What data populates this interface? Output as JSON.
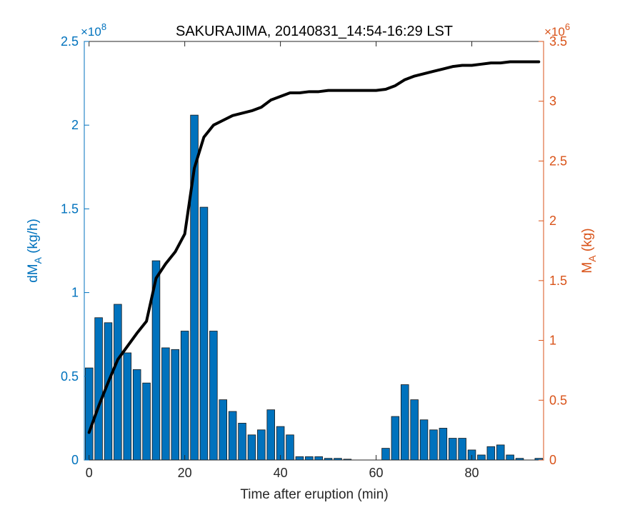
{
  "chart_data": {
    "type": "bar",
    "title": "SAKURAJIMA, 20140831_14:54-16:29 LST",
    "xlabel": "Time after eruption (min)",
    "ylabel_left": "dM",
    "ylabel_left_sub": "A",
    "ylabel_left_unit": " (kg/h)",
    "ylabel_right": "M",
    "ylabel_right_sub": "A",
    "ylabel_right_unit": " (kg)",
    "left_exponent_base": "×10",
    "left_exponent": "8",
    "right_exponent_base": "×10",
    "right_exponent": "6",
    "xlim": [
      -1,
      95
    ],
    "ylim_left": [
      0,
      2.5
    ],
    "ylim_right": [
      0,
      3.5
    ],
    "x_ticks": [
      0,
      20,
      40,
      60,
      80
    ],
    "y_ticks_left": [
      0,
      0.5,
      1,
      1.5,
      2,
      2.5
    ],
    "y_tick_labels_left": [
      "0",
      "0.5",
      "1",
      "1.5",
      "2",
      "2.5"
    ],
    "y_ticks_right": [
      0,
      0.5,
      1,
      1.5,
      2,
      2.5,
      3,
      3.5
    ],
    "y_tick_labels_right": [
      "0",
      "0.5",
      "1",
      "1.5",
      "2",
      "2.5",
      "3",
      "3.5"
    ],
    "colors": {
      "bars": "#0072BD",
      "line": "#000000",
      "left_axis": "#0072BD",
      "right_axis": "#D95319"
    },
    "bars": {
      "name": "dM_A",
      "x": [
        0,
        2,
        4,
        6,
        8,
        10,
        12,
        14,
        16,
        18,
        20,
        22,
        24,
        26,
        28,
        30,
        32,
        34,
        36,
        38,
        40,
        42,
        44,
        46,
        48,
        50,
        52,
        54,
        56,
        58,
        60,
        62,
        64,
        66,
        68,
        70,
        72,
        74,
        76,
        78,
        80,
        82,
        84,
        86,
        88,
        90,
        92,
        94
      ],
      "values": [
        0.55,
        0.85,
        0.82,
        0.93,
        0.64,
        0.54,
        0.46,
        1.19,
        0.67,
        0.66,
        0.77,
        2.06,
        1.51,
        0.77,
        0.36,
        0.29,
        0.22,
        0.15,
        0.18,
        0.3,
        0.2,
        0.15,
        0.02,
        0.02,
        0.02,
        0.01,
        0.01,
        0.005,
        0,
        0,
        0,
        0.07,
        0.26,
        0.45,
        0.36,
        0.24,
        0.18,
        0.19,
        0.13,
        0.13,
        0.06,
        0.03,
        0.08,
        0.09,
        0.03,
        0.01,
        0,
        0.01
      ]
    },
    "line": {
      "name": "M_A",
      "x": [
        0,
        2,
        4,
        6,
        8,
        10,
        12,
        14,
        16,
        18,
        20,
        22,
        24,
        26,
        28,
        30,
        32,
        34,
        36,
        38,
        40,
        42,
        44,
        46,
        48,
        50,
        52,
        54,
        56,
        58,
        60,
        62,
        64,
        66,
        68,
        70,
        72,
        74,
        76,
        78,
        80,
        82,
        84,
        86,
        88,
        90,
        92,
        94
      ],
      "values": [
        0.23,
        0.45,
        0.65,
        0.84,
        0.95,
        1.06,
        1.16,
        1.52,
        1.64,
        1.74,
        1.89,
        2.44,
        2.7,
        2.8,
        2.84,
        2.88,
        2.9,
        2.92,
        2.95,
        3.01,
        3.04,
        3.07,
        3.07,
        3.08,
        3.08,
        3.09,
        3.09,
        3.09,
        3.09,
        3.09,
        3.09,
        3.1,
        3.13,
        3.18,
        3.21,
        3.23,
        3.25,
        3.27,
        3.29,
        3.3,
        3.3,
        3.31,
        3.32,
        3.32,
        3.33,
        3.33,
        3.33,
        3.33
      ]
    }
  }
}
